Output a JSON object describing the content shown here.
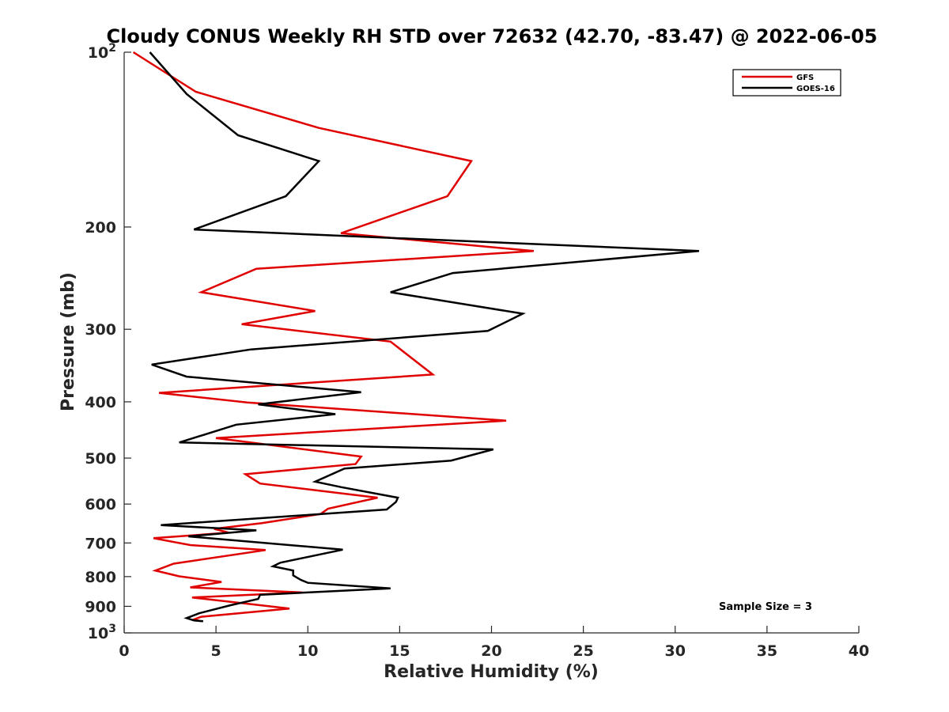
{
  "chart_data": {
    "type": "line",
    "title": "Cloudy CONUS Weekly RH STD over 72632 (42.70, -83.47) @ 2022-06-05",
    "xlabel": "Relative Humidity (%)",
    "ylabel": "Pressure (mb)",
    "xlim": [
      0,
      40
    ],
    "ylim": [
      100,
      1000
    ],
    "yscale": "log",
    "y_reversed": true,
    "x_ticks": [
      "0",
      "5",
      "10",
      "15",
      "20",
      "25",
      "30",
      "35",
      "40"
    ],
    "y_ticks": [
      {
        "value": 100,
        "label": "10",
        "sup": "2"
      },
      {
        "value": 200,
        "label": "200"
      },
      {
        "value": 300,
        "label": "300"
      },
      {
        "value": 400,
        "label": "400"
      },
      {
        "value": 500,
        "label": "500"
      },
      {
        "value": 600,
        "label": "600"
      },
      {
        "value": 700,
        "label": "700"
      },
      {
        "value": 800,
        "label": "800"
      },
      {
        "value": 900,
        "label": "900"
      },
      {
        "value": 1000,
        "label": "10",
        "sup": "3"
      }
    ],
    "grid": false,
    "legend_position": "top-right",
    "annotation": "Sample Size = 3",
    "series": [
      {
        "name": "GFS",
        "color": "#e00000",
        "points": [
          [
            0.5,
            100
          ],
          [
            3.9,
            117
          ],
          [
            10.6,
            135
          ],
          [
            18.9,
            154
          ],
          [
            17.6,
            177
          ],
          [
            11.8,
            205
          ],
          [
            22.3,
            220
          ],
          [
            7.2,
            236
          ],
          [
            4.2,
            259
          ],
          [
            10.4,
            279
          ],
          [
            6.4,
            294
          ],
          [
            14.5,
            315
          ],
          [
            16.8,
            359
          ],
          [
            1.9,
            386
          ],
          [
            6.7,
            401
          ],
          [
            20.8,
            431
          ],
          [
            5.0,
            462
          ],
          [
            12.9,
            497
          ],
          [
            12.6,
            512
          ],
          [
            6.6,
            533
          ],
          [
            7.4,
            553
          ],
          [
            13.8,
            585
          ],
          [
            11.1,
            611
          ],
          [
            10.7,
            624
          ],
          [
            7.5,
            647
          ],
          [
            4.9,
            662
          ],
          [
            5.7,
            672
          ],
          [
            1.6,
            687
          ],
          [
            3.6,
            706
          ],
          [
            7.7,
            720
          ],
          [
            2.7,
            760
          ],
          [
            1.7,
            781
          ],
          [
            3.0,
            799
          ],
          [
            5.3,
            817
          ],
          [
            3.6,
            835
          ],
          [
            9.7,
            852
          ],
          [
            3.7,
            869
          ],
          [
            9.0,
            908
          ],
          [
            4.2,
            938
          ],
          [
            3.8,
            948
          ],
          [
            4.2,
            955
          ]
        ]
      },
      {
        "name": "GOES-16",
        "color": "#000000",
        "points": [
          [
            1.4,
            100
          ],
          [
            3.4,
            118
          ],
          [
            6.2,
            139
          ],
          [
            10.6,
            154
          ],
          [
            8.8,
            177
          ],
          [
            3.8,
            202
          ],
          [
            31.3,
            220
          ],
          [
            17.9,
            240
          ],
          [
            14.5,
            259
          ],
          [
            21.7,
            282
          ],
          [
            19.8,
            302
          ],
          [
            6.9,
            325
          ],
          [
            1.5,
            345
          ],
          [
            3.4,
            362
          ],
          [
            12.9,
            385
          ],
          [
            7.3,
            404
          ],
          [
            11.5,
            420
          ],
          [
            6.1,
            438
          ],
          [
            3.0,
            470
          ],
          [
            20.1,
            483
          ],
          [
            17.8,
            505
          ],
          [
            12.0,
            521
          ],
          [
            10.4,
            549
          ],
          [
            11.8,
            561
          ],
          [
            14.9,
            585
          ],
          [
            14.8,
            595
          ],
          [
            14.3,
            613
          ],
          [
            2.0,
            652
          ],
          [
            7.2,
            666
          ],
          [
            3.5,
            682
          ],
          [
            11.9,
            719
          ],
          [
            8.5,
            757
          ],
          [
            8.1,
            768
          ],
          [
            9.2,
            781
          ],
          [
            9.2,
            796
          ],
          [
            9.6,
            810
          ],
          [
            10.0,
            820
          ],
          [
            14.5,
            838
          ],
          [
            7.4,
            860
          ],
          [
            7.3,
            874
          ],
          [
            5.8,
            896
          ],
          [
            4.1,
            925
          ],
          [
            3.4,
            943
          ],
          [
            3.8,
            952
          ],
          [
            4.3,
            955
          ]
        ]
      }
    ]
  }
}
